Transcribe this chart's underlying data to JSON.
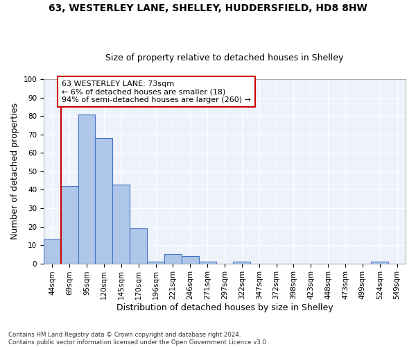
{
  "title1": "63, WESTERLEY LANE, SHELLEY, HUDDERSFIELD, HD8 8HW",
  "title2": "Size of property relative to detached houses in Shelley",
  "xlabel": "Distribution of detached houses by size in Shelley",
  "ylabel": "Number of detached properties",
  "categories": [
    "44sqm",
    "69sqm",
    "95sqm",
    "120sqm",
    "145sqm",
    "170sqm",
    "196sqm",
    "221sqm",
    "246sqm",
    "271sqm",
    "297sqm",
    "322sqm",
    "347sqm",
    "372sqm",
    "398sqm",
    "423sqm",
    "448sqm",
    "473sqm",
    "499sqm",
    "524sqm",
    "549sqm"
  ],
  "values": [
    13,
    42,
    81,
    68,
    43,
    19,
    1,
    5,
    4,
    1,
    0,
    1,
    0,
    0,
    0,
    0,
    0,
    0,
    0,
    1,
    0
  ],
  "bar_color": "#aec6e8",
  "bar_edge_color": "#4472c4",
  "annotation_box_text": "63 WESTERLEY LANE: 73sqm\n← 6% of detached houses are smaller (18)\n94% of semi-detached houses are larger (260) →",
  "annotation_box_color": "#ffffff",
  "annotation_box_edge_color": "#cc0000",
  "vline_color": "#cc0000",
  "ylim": [
    0,
    100
  ],
  "yticks": [
    0,
    10,
    20,
    30,
    40,
    50,
    60,
    70,
    80,
    90,
    100
  ],
  "background_color": "#eef2fb",
  "footnote": "Contains HM Land Registry data © Crown copyright and database right 2024.\nContains public sector information licensed under the Open Government Licence v3.0.",
  "title_fontsize": 10,
  "subtitle_fontsize": 9,
  "axis_label_fontsize": 9,
  "tick_fontsize": 7.5,
  "annot_fontsize": 8
}
